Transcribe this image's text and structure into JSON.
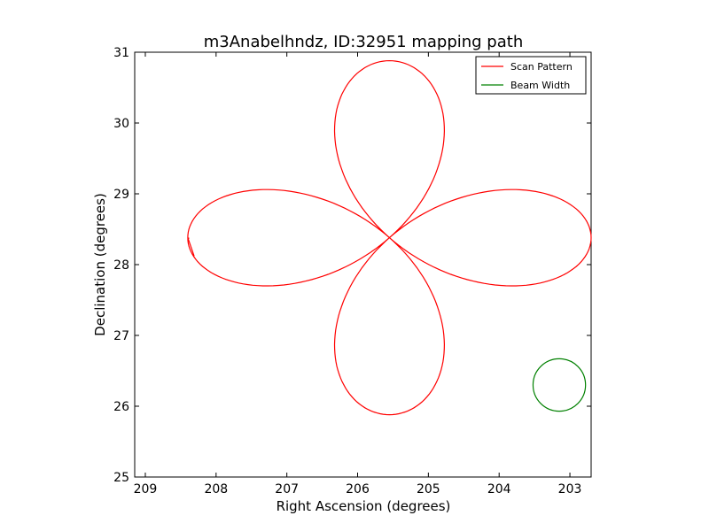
{
  "chart_data": {
    "type": "line",
    "title": "m3Anabelhndz, ID:32951 mapping path",
    "xlabel": "Right Ascension (degrees)",
    "ylabel": "Declination (degrees)",
    "x_inverted": true,
    "xlim": [
      209.15,
      202.7
    ],
    "ylim": [
      25,
      31
    ],
    "xticks": [
      209,
      208,
      207,
      206,
      205,
      204,
      203
    ],
    "xtick_labels": [
      "209",
      "208",
      "207",
      "206",
      "205",
      "204",
      "203"
    ],
    "yticks": [
      25,
      26,
      27,
      28,
      29,
      30,
      31
    ],
    "ytick_labels": [
      "25",
      "26",
      "27",
      "28",
      "29",
      "30",
      "31"
    ],
    "grid": false,
    "legend": {
      "placement": "top-right",
      "entries": [
        "Scan Pattern",
        "Beam Width"
      ]
    },
    "series": [
      {
        "name": "Scan Pattern",
        "color": "#ff0000",
        "kind": "rose-curve",
        "center": [
          205.55,
          28.38
        ],
        "petal_length_ra": 2.85,
        "petal_length_dec": 2.5,
        "start": [
          208.38,
          28.37
        ],
        "end": [
          208.31,
          28.12
        ]
      },
      {
        "name": "Beam Width",
        "color": "#008000",
        "kind": "circle",
        "center": [
          203.15,
          26.3
        ],
        "radius_dec": 0.37
      }
    ]
  }
}
